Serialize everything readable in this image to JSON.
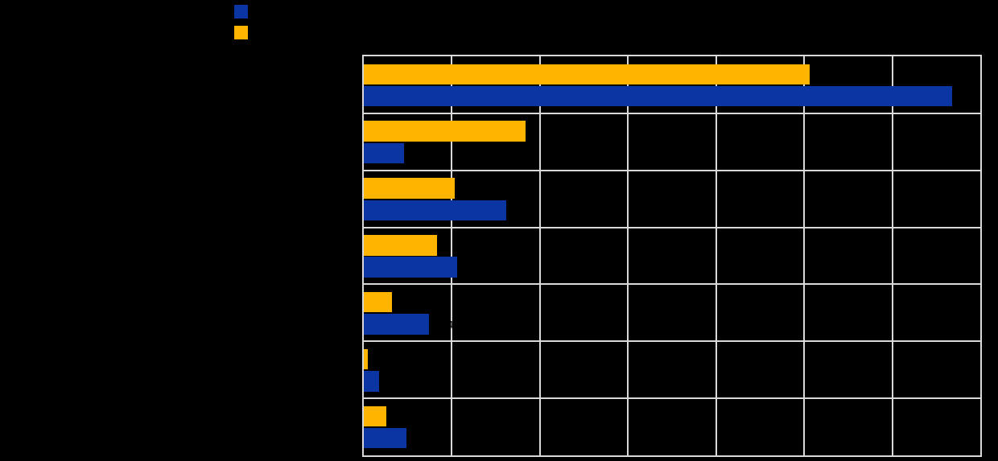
{
  "app": {
    "background_color": "#000000",
    "text_color": "#000000"
  },
  "legend": {
    "position": "top-left",
    "items": [
      {
        "name": "blue-series",
        "label": "",
        "color": "#0A35A3"
      },
      {
        "name": "orange-series",
        "label": "",
        "color": "#FFB400"
      }
    ]
  },
  "chart_data": {
    "type": "bar",
    "orientation": "horizontal",
    "title": "",
    "xlabel": "",
    "ylabel": "",
    "categories": [
      "",
      "",
      "",
      "",
      "",
      "",
      ""
    ],
    "series": [
      {
        "name": "blue-series",
        "color": "#0A35A3",
        "values": [
          6.68,
          0.46,
          1.62,
          1.06,
          0.74,
          0.17,
          0.48
        ]
      },
      {
        "name": "orange-series",
        "color": "#FFB400",
        "values": [
          5.06,
          1.84,
          1.03,
          0.83,
          0.32,
          0.05,
          0.26
        ]
      }
    ],
    "xlim": [
      0,
      7
    ],
    "grid": {
      "on": true,
      "interval": 1,
      "color": "#D9D9D9"
    },
    "frame_color": "#D9D9D9",
    "value_label_color": "#000000",
    "bar_row_order": [
      "orange-series",
      "blue-series"
    ],
    "value_labels_on": "blue-series"
  }
}
